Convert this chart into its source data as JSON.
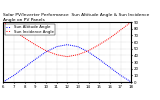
{
  "title": "Solar PV/Inverter Performance  Sun Altitude Angle & Sun Incidence Angle on PV Panels",
  "legend_labels": [
    "Sun Altitude Angle",
    "Sun Incidence Angle"
  ],
  "legend_colors": [
    "blue",
    "red"
  ],
  "x_values": [
    6,
    7,
    8,
    9,
    10,
    11,
    12,
    13,
    14,
    15,
    16,
    17,
    18
  ],
  "sun_altitude": [
    0,
    10,
    22,
    34,
    45,
    53,
    56,
    53,
    45,
    34,
    22,
    10,
    0
  ],
  "sun_incidence": [
    90,
    78,
    66,
    56,
    47,
    41,
    38,
    41,
    47,
    56,
    66,
    78,
    90
  ],
  "ylim": [
    0,
    90
  ],
  "xlim": [
    6,
    18
  ],
  "yticks": [
    0,
    10,
    20,
    30,
    40,
    50,
    60,
    70,
    80,
    90
  ],
  "xticks": [
    6,
    7,
    8,
    9,
    10,
    11,
    12,
    13,
    14,
    15,
    16,
    17,
    18
  ],
  "xlabel_labels": [
    "6",
    "7",
    "8",
    "9",
    "10",
    "11",
    "12",
    "13",
    "14",
    "15",
    "16",
    "17",
    "18"
  ],
  "bg_color": "#ffffff",
  "grid_color": "#aaaaaa",
  "title_fontsize": 3.2,
  "tick_fontsize": 2.8,
  "legend_fontsize": 2.8,
  "line_width": 0.7
}
